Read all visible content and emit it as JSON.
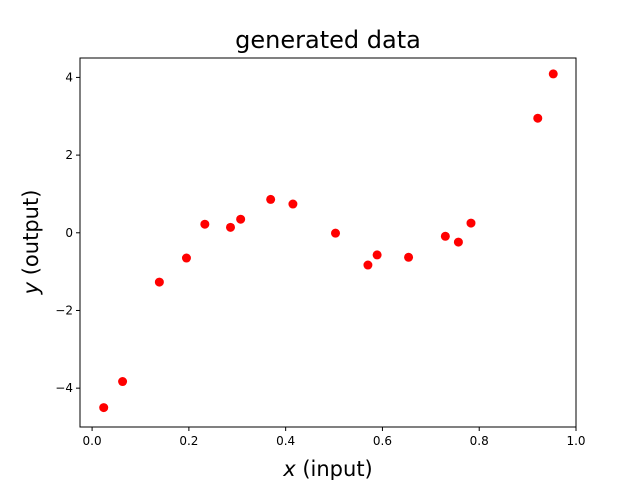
{
  "chart_data": {
    "type": "scatter",
    "title": "generated data",
    "xlabel": {
      "var": "x",
      "rest": " (input)"
    },
    "ylabel": {
      "var": "y",
      "rest": " (output)"
    },
    "xlim": [
      -0.025,
      1.0
    ],
    "ylim": [
      -5.0,
      4.5
    ],
    "xticks": [
      0.0,
      0.2,
      0.4,
      0.6,
      0.8,
      1.0
    ],
    "xtick_labels": [
      "0.0",
      "0.2",
      "0.4",
      "0.6",
      "0.8",
      "1.0"
    ],
    "yticks": [
      -4,
      -2,
      0,
      2,
      4
    ],
    "ytick_labels": [
      "−4",
      "−2",
      "0",
      "2",
      "4"
    ],
    "marker_color": "#ff0000",
    "grid": false,
    "series": [
      {
        "points": [
          {
            "x": 0.024,
            "y": -4.5
          },
          {
            "x": 0.063,
            "y": -3.83
          },
          {
            "x": 0.139,
            "y": -1.27
          },
          {
            "x": 0.195,
            "y": -0.65
          },
          {
            "x": 0.233,
            "y": 0.22
          },
          {
            "x": 0.286,
            "y": 0.14
          },
          {
            "x": 0.307,
            "y": 0.35
          },
          {
            "x": 0.369,
            "y": 0.86
          },
          {
            "x": 0.415,
            "y": 0.74
          },
          {
            "x": 0.503,
            "y": -0.01
          },
          {
            "x": 0.57,
            "y": -0.83
          },
          {
            "x": 0.589,
            "y": -0.57
          },
          {
            "x": 0.654,
            "y": -0.63
          },
          {
            "x": 0.73,
            "y": -0.09
          },
          {
            "x": 0.757,
            "y": -0.24
          },
          {
            "x": 0.783,
            "y": 0.25
          },
          {
            "x": 0.921,
            "y": 2.95
          },
          {
            "x": 0.953,
            "y": 4.09
          }
        ]
      }
    ]
  }
}
